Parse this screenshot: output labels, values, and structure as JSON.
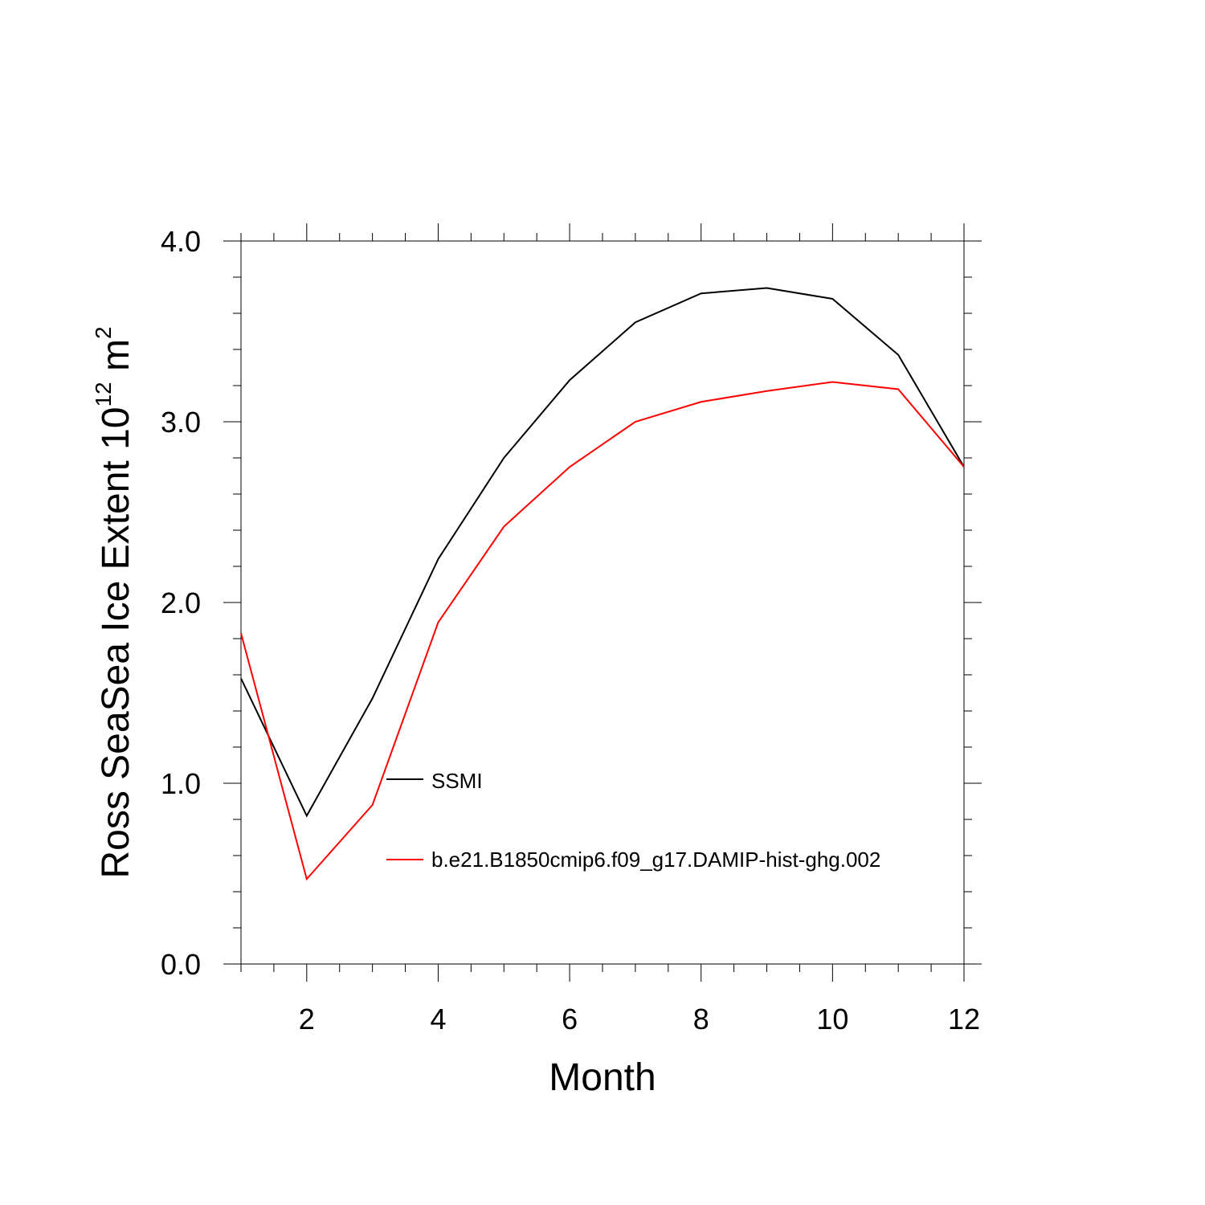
{
  "chart_data": {
    "type": "line",
    "title": "",
    "xlabel": "Month",
    "ylabel": "Ross SeaSea Ice Extent 10",
    "ylabel_exponent": "12",
    "ylabel_unit": " m",
    "ylabel_unit_exponent": "2",
    "xlim": [
      1,
      12
    ],
    "ylim": [
      0,
      4
    ],
    "x_major_ticks": [
      2,
      4,
      6,
      8,
      10,
      12
    ],
    "x_tick_labels": [
      "2",
      "4",
      "6",
      "8",
      "10",
      "12"
    ],
    "y_major_ticks": [
      0,
      1,
      2,
      3,
      4
    ],
    "y_tick_labels": [
      "0.0",
      "1.0",
      "2.0",
      "3.0",
      "4.0"
    ],
    "x_minor_step": 0.5,
    "y_minor_step": 0.2,
    "grid": false,
    "x": [
      1,
      2,
      3,
      4,
      5,
      6,
      7,
      8,
      9,
      10,
      11,
      12
    ],
    "series": [
      {
        "name": "SSMI",
        "color": "#000000",
        "values": [
          1.58,
          0.82,
          1.47,
          2.24,
          2.8,
          3.23,
          3.55,
          3.71,
          3.74,
          3.68,
          3.37,
          2.75
        ]
      },
      {
        "name": "b.e21.B1850cmip6.f09_g17.DAMIP-hist-ghg.002",
        "color": "#ff0000",
        "values": [
          1.83,
          0.47,
          0.88,
          1.89,
          2.42,
          2.75,
          3.0,
          3.11,
          3.17,
          3.22,
          3.18,
          2.75
        ]
      }
    ],
    "legend_position": "inside-lower-center"
  }
}
